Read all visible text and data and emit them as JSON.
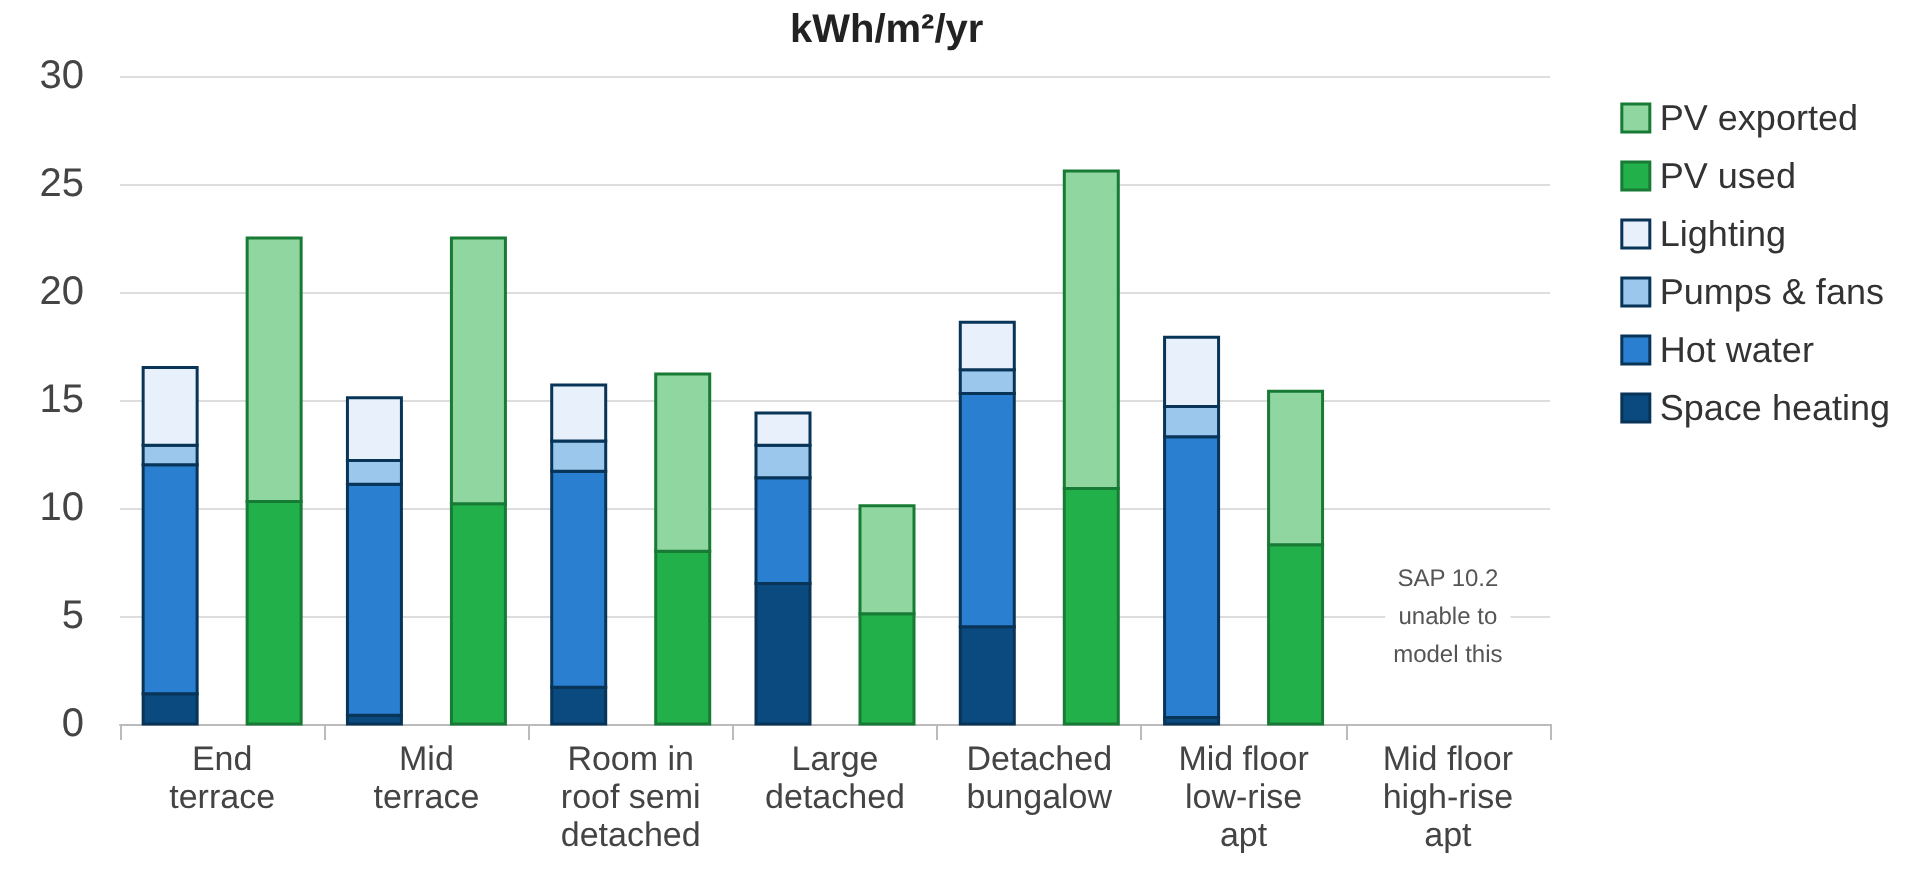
{
  "chart_data": {
    "type": "bar",
    "title": "kWh/m²/yr",
    "grid": "y",
    "legend": "right",
    "categories": [
      "End\nterrace",
      "Mid\nterrace",
      "Room in\nroof semi\ndetached",
      "Large\ndetached",
      "Detached\nbungalow",
      "Mid floor\nlow-rise\napt",
      "Mid floor\nhigh-rise\napt"
    ],
    "ylim": [
      0,
      30
    ],
    "yticks": [
      0,
      5,
      10,
      15,
      20,
      25,
      30
    ],
    "series": [
      {
        "name": "Space heating",
        "color": "#0b4a7e",
        "values": [
          1.4,
          0.4,
          1.7,
          6.5,
          4.5,
          0.3,
          null
        ],
        "base": [
          0,
          0,
          0,
          0,
          0,
          0,
          null
        ]
      },
      {
        "name": "Hot water",
        "color": "#2a7fd0",
        "values": [
          10.6,
          10.7,
          10.0,
          4.9,
          10.8,
          13.0,
          null
        ],
        "base": [
          1.4,
          0.4,
          1.7,
          6.5,
          4.5,
          0.3,
          null
        ]
      },
      {
        "name": "Pumps & fans",
        "color": "#9cc7ec",
        "values": [
          0.9,
          1.1,
          1.4,
          1.5,
          1.1,
          1.4,
          null
        ],
        "base": [
          12.0,
          11.1,
          11.7,
          11.4,
          15.3,
          13.3,
          null
        ]
      },
      {
        "name": "Lighting",
        "color": "#e8f1fb",
        "values": [
          3.6,
          2.9,
          2.6,
          1.5,
          2.2,
          3.2,
          null
        ],
        "base": [
          12.9,
          12.2,
          13.1,
          12.9,
          16.4,
          14.7,
          null
        ]
      },
      {
        "name": "PV used",
        "color": "#22b04b",
        "values": [
          10.3,
          10.2,
          8.0,
          5.1,
          10.9,
          8.3,
          null
        ],
        "base": [
          0,
          0,
          0,
          0,
          0,
          0,
          null
        ]
      },
      {
        "name": "PV exported",
        "color": "#8fd6a0",
        "values": [
          12.2,
          12.3,
          8.2,
          5.0,
          14.7,
          7.1,
          null
        ],
        "base": [
          10.3,
          10.2,
          8.0,
          5.1,
          10.9,
          8.3,
          null
        ]
      }
    ],
    "annotations": [
      "SAP 10.2\nunable to\nmodel this"
    ]
  }
}
